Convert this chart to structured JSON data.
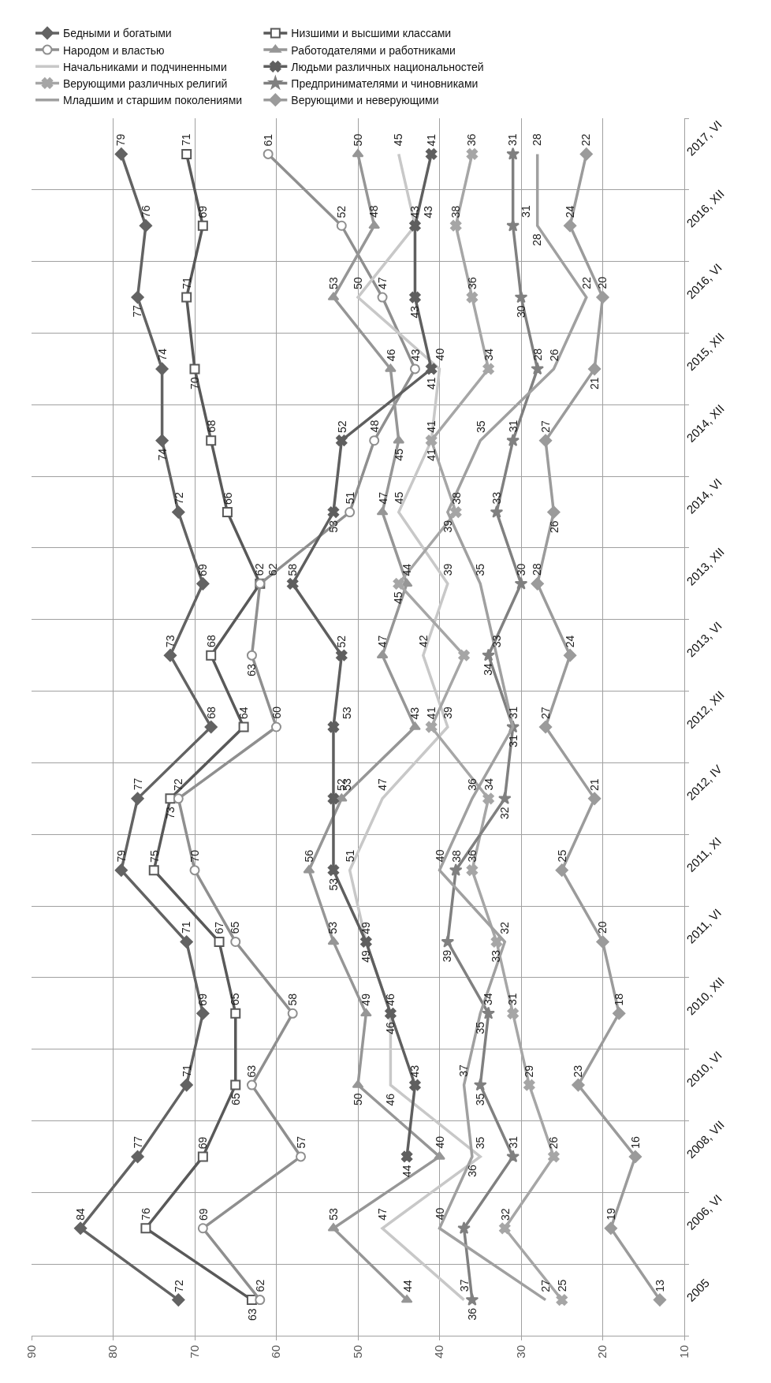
{
  "chart_data": {
    "type": "line",
    "orientation": "horizontal",
    "categories": [
      "2017, VI",
      "2016, XII",
      "2016, VI",
      "2015, XII",
      "2014, XII",
      "2014, VI",
      "2013, XII",
      "2013, VI",
      "2012, XII",
      "2012, IV",
      "2011, XI",
      "2011, VI",
      "2010, XII",
      "2010, VI",
      "2008, VII",
      "2006, VI",
      "2005"
    ],
    "xlim": [
      90,
      10
    ],
    "xticks": [
      10,
      20,
      30,
      40,
      50,
      60,
      70,
      80,
      90
    ],
    "grid": true,
    "legend": "top",
    "data_labels": true,
    "line_style": "solid",
    "series": [
      {
        "name": "Бедными и богатыми",
        "color": "#636363",
        "marker": "diamond",
        "values": [
          79,
          76,
          77,
          74,
          74,
          72,
          69,
          73,
          68,
          77,
          79,
          71,
          69,
          71,
          77,
          84,
          72
        ]
      },
      {
        "name": "Низшими и высшими классами",
        "color": "#595959",
        "marker": "square",
        "values": [
          71,
          69,
          71,
          70,
          68,
          66,
          62,
          68,
          64,
          73,
          75,
          67,
          65,
          65,
          69,
          76,
          63
        ]
      },
      {
        "name": "Народом и властью",
        "color": "#8f8f8f",
        "marker": "circle",
        "values": [
          61,
          52,
          47,
          43,
          48,
          51,
          62,
          63,
          60,
          72,
          70,
          65,
          58,
          63,
          57,
          69,
          62
        ]
      },
      {
        "name": "Работодателями и работниками",
        "color": "#969696",
        "marker": "triangle",
        "values": [
          50,
          48,
          53,
          46,
          45,
          47,
          44,
          47,
          43,
          52,
          56,
          53,
          49,
          50,
          40,
          53,
          44
        ]
      },
      {
        "name": "Начальниками и подчиненными",
        "color": "#c8c8c8",
        "marker": "none",
        "values": [
          45,
          43,
          50,
          40,
          41,
          45,
          39,
          42,
          39,
          47,
          51,
          49,
          46,
          46,
          35,
          47,
          37
        ]
      },
      {
        "name": "Людьми различных национальностей",
        "color": "#5f5f5f",
        "marker": "cross",
        "values": [
          41,
          43,
          43,
          41,
          52,
          53,
          58,
          52,
          53,
          53,
          53,
          49,
          46,
          43,
          44,
          null,
          null
        ]
      },
      {
        "name": "Верующими различных религий",
        "color": "#a6a6a6",
        "marker": "cross",
        "values": [
          36,
          38,
          36,
          34,
          41,
          38,
          45,
          37,
          41,
          34,
          36,
          33,
          31,
          29,
          26,
          32,
          25
        ],
        "value_labels": [
          "36",
          "38",
          "36",
          "34",
          "41",
          "38",
          "45",
          null,
          "41",
          "34",
          "36",
          "33",
          "31",
          "29",
          "26",
          "32",
          "25"
        ]
      },
      {
        "name": "Предпринимателями и чиновниками",
        "color": "#808080",
        "marker": "star",
        "values": [
          31,
          31,
          30,
          28,
          31,
          33,
          30,
          34,
          31,
          32,
          38,
          39,
          34,
          35,
          31,
          37,
          36
        ],
        "value_labels": [
          "31",
          "31",
          "30",
          "28",
          "31",
          "33",
          "30",
          "34",
          "31",
          "32",
          "38",
          "39",
          "34",
          "35",
          "31",
          null,
          "36"
        ]
      },
      {
        "name": "Младшим и старшим поколениями",
        "color": "#a0a0a0",
        "marker": "none",
        "values": [
          28,
          28,
          22,
          26,
          35,
          39,
          35,
          33,
          31,
          36,
          40,
          32,
          35,
          37,
          36,
          40,
          27
        ]
      },
      {
        "name": "Верующими и неверующими",
        "color": "#9b9b9b",
        "marker": "diamond",
        "values": [
          22,
          24,
          20,
          21,
          27,
          26,
          28,
          24,
          27,
          21,
          25,
          20,
          18,
          23,
          16,
          19,
          13
        ]
      }
    ]
  }
}
